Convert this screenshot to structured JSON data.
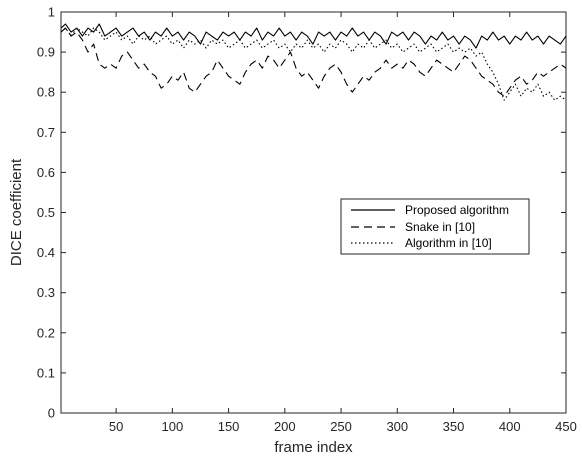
{
  "chart_data": {
    "type": "line",
    "title": "",
    "xlabel": "frame index",
    "ylabel": "DICE coefficient",
    "xlim": [
      1,
      450
    ],
    "ylim": [
      0,
      1
    ],
    "xticks": [
      50,
      100,
      150,
      200,
      250,
      300,
      350,
      400,
      450
    ],
    "xtick_labels": [
      "50",
      "100",
      "150",
      "200",
      "250",
      "300",
      "350",
      "400",
      "450"
    ],
    "yticks": [
      0,
      0.1,
      0.2,
      0.3,
      0.4,
      0.5,
      0.6,
      0.7,
      0.8,
      0.9,
      1
    ],
    "ytick_labels": [
      "0",
      "0.1",
      "0.2",
      "0.3",
      "0.4",
      "0.5",
      "0.6",
      "0.7",
      "0.8",
      "0.9",
      "1"
    ],
    "grid": false,
    "legend_position": "center-right",
    "series": [
      {
        "name": "Proposed algorithm",
        "style": "solid",
        "color": "#000000",
        "points": [
          [
            1,
            0.96
          ],
          [
            5,
            0.97
          ],
          [
            10,
            0.95
          ],
          [
            15,
            0.96
          ],
          [
            20,
            0.94
          ],
          [
            25,
            0.96
          ],
          [
            30,
            0.95
          ],
          [
            35,
            0.97
          ],
          [
            40,
            0.94
          ],
          [
            45,
            0.95
          ],
          [
            50,
            0.96
          ],
          [
            55,
            0.94
          ],
          [
            60,
            0.95
          ],
          [
            65,
            0.96
          ],
          [
            70,
            0.94
          ],
          [
            75,
            0.95
          ],
          [
            80,
            0.93
          ],
          [
            85,
            0.95
          ],
          [
            90,
            0.94
          ],
          [
            95,
            0.96
          ],
          [
            100,
            0.94
          ],
          [
            105,
            0.95
          ],
          [
            110,
            0.93
          ],
          [
            115,
            0.95
          ],
          [
            120,
            0.94
          ],
          [
            125,
            0.92
          ],
          [
            130,
            0.95
          ],
          [
            135,
            0.94
          ],
          [
            140,
            0.93
          ],
          [
            145,
            0.95
          ],
          [
            150,
            0.94
          ],
          [
            155,
            0.95
          ],
          [
            160,
            0.93
          ],
          [
            165,
            0.95
          ],
          [
            170,
            0.94
          ],
          [
            175,
            0.96
          ],
          [
            180,
            0.93
          ],
          [
            185,
            0.95
          ],
          [
            190,
            0.94
          ],
          [
            195,
            0.96
          ],
          [
            200,
            0.94
          ],
          [
            205,
            0.95
          ],
          [
            210,
            0.93
          ],
          [
            215,
            0.95
          ],
          [
            220,
            0.94
          ],
          [
            225,
            0.92
          ],
          [
            230,
            0.95
          ],
          [
            235,
            0.94
          ],
          [
            240,
            0.95
          ],
          [
            245,
            0.93
          ],
          [
            250,
            0.95
          ],
          [
            255,
            0.94
          ],
          [
            260,
            0.96
          ],
          [
            265,
            0.94
          ],
          [
            270,
            0.95
          ],
          [
            275,
            0.93
          ],
          [
            280,
            0.95
          ],
          [
            285,
            0.94
          ],
          [
            290,
            0.92
          ],
          [
            295,
            0.95
          ],
          [
            300,
            0.94
          ],
          [
            305,
            0.95
          ],
          [
            310,
            0.93
          ],
          [
            315,
            0.95
          ],
          [
            320,
            0.94
          ],
          [
            325,
            0.92
          ],
          [
            330,
            0.94
          ],
          [
            335,
            0.93
          ],
          [
            340,
            0.95
          ],
          [
            345,
            0.93
          ],
          [
            350,
            0.94
          ],
          [
            355,
            0.92
          ],
          [
            360,
            0.94
          ],
          [
            365,
            0.93
          ],
          [
            370,
            0.91
          ],
          [
            375,
            0.94
          ],
          [
            380,
            0.93
          ],
          [
            385,
            0.95
          ],
          [
            390,
            0.93
          ],
          [
            395,
            0.94
          ],
          [
            400,
            0.92
          ],
          [
            405,
            0.94
          ],
          [
            410,
            0.93
          ],
          [
            415,
            0.95
          ],
          [
            420,
            0.93
          ],
          [
            425,
            0.94
          ],
          [
            430,
            0.92
          ],
          [
            435,
            0.94
          ],
          [
            440,
            0.93
          ],
          [
            445,
            0.92
          ],
          [
            450,
            0.94
          ]
        ]
      },
      {
        "name": "Snake in [10]",
        "style": "dashed",
        "color": "#000000",
        "points": [
          [
            1,
            0.95
          ],
          [
            5,
            0.96
          ],
          [
            10,
            0.94
          ],
          [
            15,
            0.95
          ],
          [
            20,
            0.93
          ],
          [
            25,
            0.9
          ],
          [
            30,
            0.92
          ],
          [
            35,
            0.87
          ],
          [
            40,
            0.86
          ],
          [
            45,
            0.87
          ],
          [
            50,
            0.86
          ],
          [
            55,
            0.89
          ],
          [
            60,
            0.9
          ],
          [
            65,
            0.88
          ],
          [
            70,
            0.86
          ],
          [
            75,
            0.87
          ],
          [
            80,
            0.85
          ],
          [
            85,
            0.84
          ],
          [
            90,
            0.81
          ],
          [
            95,
            0.82
          ],
          [
            100,
            0.84
          ],
          [
            105,
            0.83
          ],
          [
            110,
            0.85
          ],
          [
            115,
            0.81
          ],
          [
            120,
            0.8
          ],
          [
            125,
            0.82
          ],
          [
            130,
            0.84
          ],
          [
            135,
            0.85
          ],
          [
            140,
            0.88
          ],
          [
            145,
            0.86
          ],
          [
            150,
            0.84
          ],
          [
            155,
            0.83
          ],
          [
            160,
            0.82
          ],
          [
            165,
            0.85
          ],
          [
            170,
            0.87
          ],
          [
            175,
            0.88
          ],
          [
            180,
            0.86
          ],
          [
            185,
            0.89
          ],
          [
            190,
            0.88
          ],
          [
            195,
            0.86
          ],
          [
            200,
            0.88
          ],
          [
            205,
            0.9
          ],
          [
            210,
            0.86
          ],
          [
            215,
            0.84
          ],
          [
            220,
            0.85
          ],
          [
            225,
            0.83
          ],
          [
            230,
            0.81
          ],
          [
            235,
            0.84
          ],
          [
            240,
            0.86
          ],
          [
            245,
            0.87
          ],
          [
            250,
            0.85
          ],
          [
            255,
            0.82
          ],
          [
            260,
            0.8
          ],
          [
            265,
            0.82
          ],
          [
            270,
            0.84
          ],
          [
            275,
            0.83
          ],
          [
            280,
            0.85
          ],
          [
            285,
            0.86
          ],
          [
            290,
            0.88
          ],
          [
            295,
            0.86
          ],
          [
            300,
            0.87
          ],
          [
            305,
            0.86
          ],
          [
            310,
            0.88
          ],
          [
            315,
            0.87
          ],
          [
            320,
            0.85
          ],
          [
            325,
            0.84
          ],
          [
            330,
            0.86
          ],
          [
            335,
            0.88
          ],
          [
            340,
            0.87
          ],
          [
            345,
            0.86
          ],
          [
            350,
            0.85
          ],
          [
            355,
            0.87
          ],
          [
            360,
            0.89
          ],
          [
            365,
            0.88
          ],
          [
            370,
            0.86
          ],
          [
            375,
            0.84
          ],
          [
            380,
            0.83
          ],
          [
            385,
            0.82
          ],
          [
            390,
            0.8
          ],
          [
            395,
            0.79
          ],
          [
            400,
            0.81
          ],
          [
            405,
            0.83
          ],
          [
            410,
            0.84
          ],
          [
            415,
            0.82
          ],
          [
            420,
            0.83
          ],
          [
            425,
            0.85
          ],
          [
            430,
            0.84
          ],
          [
            435,
            0.85
          ],
          [
            440,
            0.86
          ],
          [
            445,
            0.87
          ],
          [
            450,
            0.86
          ]
        ]
      },
      {
        "name": "Algorithm in [10]",
        "style": "dotted",
        "color": "#000000",
        "points": [
          [
            1,
            0.95
          ],
          [
            5,
            0.96
          ],
          [
            10,
            0.94
          ],
          [
            15,
            0.96
          ],
          [
            20,
            0.95
          ],
          [
            25,
            0.94
          ],
          [
            30,
            0.96
          ],
          [
            35,
            0.95
          ],
          [
            40,
            0.93
          ],
          [
            45,
            0.94
          ],
          [
            50,
            0.95
          ],
          [
            55,
            0.93
          ],
          [
            60,
            0.94
          ],
          [
            65,
            0.92
          ],
          [
            70,
            0.94
          ],
          [
            75,
            0.93
          ],
          [
            80,
            0.94
          ],
          [
            85,
            0.92
          ],
          [
            90,
            0.93
          ],
          [
            95,
            0.94
          ],
          [
            100,
            0.92
          ],
          [
            105,
            0.93
          ],
          [
            110,
            0.91
          ],
          [
            115,
            0.93
          ],
          [
            120,
            0.92
          ],
          [
            125,
            0.93
          ],
          [
            130,
            0.91
          ],
          [
            135,
            0.93
          ],
          [
            140,
            0.92
          ],
          [
            145,
            0.93
          ],
          [
            150,
            0.91
          ],
          [
            155,
            0.92
          ],
          [
            160,
            0.93
          ],
          [
            165,
            0.91
          ],
          [
            170,
            0.92
          ],
          [
            175,
            0.93
          ],
          [
            180,
            0.91
          ],
          [
            185,
            0.92
          ],
          [
            190,
            0.93
          ],
          [
            195,
            0.91
          ],
          [
            200,
            0.92
          ],
          [
            205,
            0.9
          ],
          [
            210,
            0.92
          ],
          [
            215,
            0.91
          ],
          [
            220,
            0.93
          ],
          [
            225,
            0.91
          ],
          [
            230,
            0.92
          ],
          [
            235,
            0.9
          ],
          [
            240,
            0.92
          ],
          [
            245,
            0.91
          ],
          [
            250,
            0.93
          ],
          [
            255,
            0.92
          ],
          [
            260,
            0.9
          ],
          [
            265,
            0.92
          ],
          [
            270,
            0.91
          ],
          [
            275,
            0.93
          ],
          [
            280,
            0.91
          ],
          [
            285,
            0.92
          ],
          [
            290,
            0.93
          ],
          [
            295,
            0.91
          ],
          [
            300,
            0.92
          ],
          [
            305,
            0.9
          ],
          [
            310,
            0.91
          ],
          [
            315,
            0.92
          ],
          [
            320,
            0.9
          ],
          [
            325,
            0.91
          ],
          [
            330,
            0.92
          ],
          [
            335,
            0.9
          ],
          [
            340,
            0.91
          ],
          [
            345,
            0.92
          ],
          [
            350,
            0.9
          ],
          [
            355,
            0.91
          ],
          [
            360,
            0.9
          ],
          [
            365,
            0.91
          ],
          [
            370,
            0.89
          ],
          [
            375,
            0.9
          ],
          [
            380,
            0.87
          ],
          [
            385,
            0.85
          ],
          [
            390,
            0.82
          ],
          [
            395,
            0.78
          ],
          [
            400,
            0.8
          ],
          [
            405,
            0.82
          ],
          [
            410,
            0.79
          ],
          [
            415,
            0.81
          ],
          [
            420,
            0.8
          ],
          [
            425,
            0.82
          ],
          [
            430,
            0.79
          ],
          [
            435,
            0.8
          ],
          [
            440,
            0.78
          ],
          [
            445,
            0.79
          ],
          [
            450,
            0.78
          ]
        ]
      }
    ]
  }
}
